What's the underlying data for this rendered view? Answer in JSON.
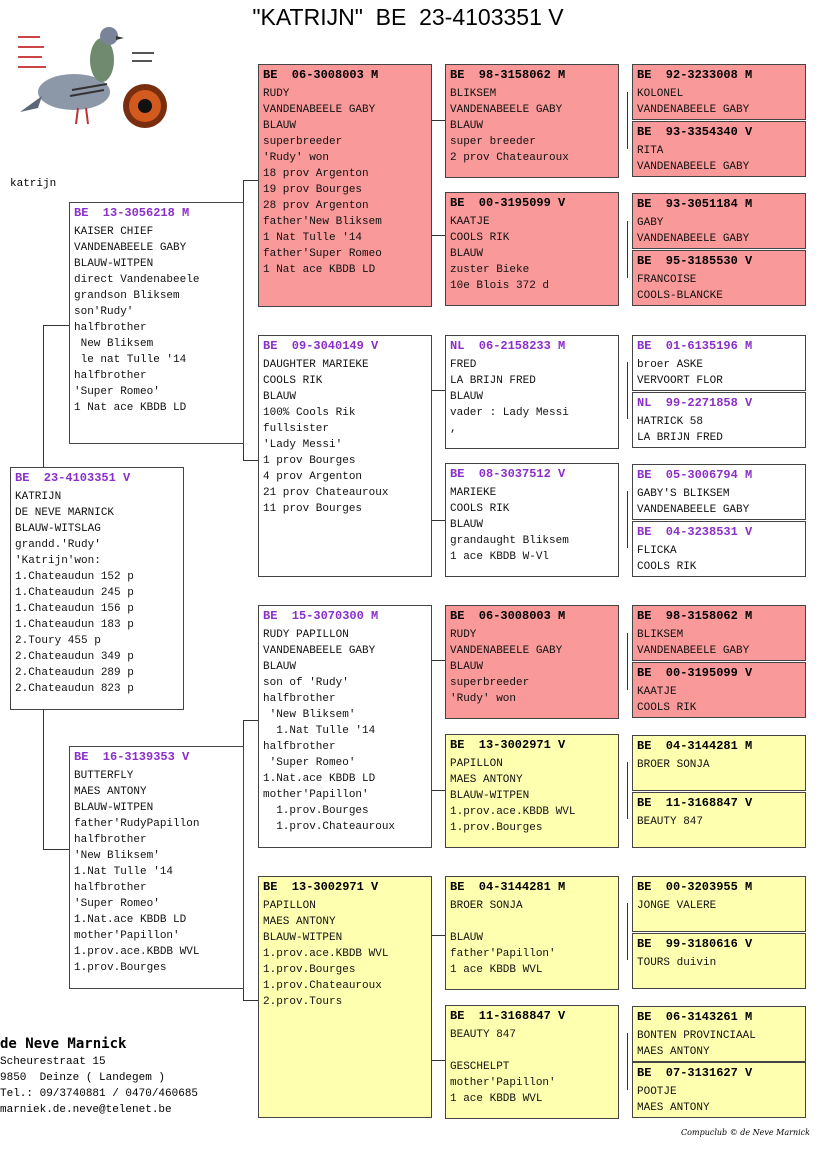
{
  "title": "\"KATRIJN\"  BE  23-4103351 V",
  "label_top_left": "katrijn",
  "colors": {
    "red": "#f99999",
    "yellow": "#ffffb0",
    "purple": "#8b2fc9"
  },
  "logo": {
    "name": "pigeon-and-eye-logo",
    "text": "Compuclub"
  },
  "boxes": {
    "main": {
      "header": "BE  23-4103351 V",
      "lines": [
        "KATRIJN",
        "DE NEVE MARNICK",
        "BLAUW-WITSLAG",
        "grandd.'Rudy'",
        "'Katrijn'won:",
        "1.Chateaudun 152 p",
        "1.Chateaudun 245 p",
        "1.Chateaudun 156 p",
        "1.Chateaudun 183 p",
        "2.Toury 455 p",
        "2.Chateaudun 349 p",
        "2.Chateaudun 289 p",
        "2.Chateaudun 823 p"
      ]
    },
    "sire": {
      "header": "BE  13-3056218 M",
      "lines": [
        "KAISER CHIEF",
        "VANDENABEELE GABY",
        "BLAUW-WITPEN",
        "direct Vandenabeele",
        "grandson Bliksem",
        "son'Rudy'",
        "halfbrother",
        " New Bliksem",
        " le nat Tulle '14",
        "halfbrother",
        "'Super Romeo'",
        "1 Nat ace KBDB LD"
      ]
    },
    "dam": {
      "header": "BE  16-3139353 V",
      "lines": [
        "BUTTERFLY",
        "MAES ANTONY",
        "BLAUW-WITPEN",
        "father'RudyPapillon",
        "halfbrother",
        "'New Bliksem'",
        "1.Nat Tulle '14",
        "halfbrother",
        "'Super Romeo'",
        "1.Nat.ace KBDB LD",
        "mother'Papillon'",
        "1.prov.ace.KBDB WVL",
        "1.prov.Bourges"
      ]
    },
    "g1": {
      "header": "BE  06-3008003 M",
      "lines": [
        "RUDY",
        "VANDENABEELE GABY",
        "BLAUW",
        "superbreeder",
        "'Rudy' won",
        "18 prov Argenton",
        "19 prov Bourges",
        "28 prov Argenton",
        "father'New Bliksem",
        "1 Nat Tulle '14",
        "father'Super Romeo",
        "1 Nat ace KBDB LD"
      ]
    },
    "g2": {
      "header": "BE  09-3040149 V",
      "lines": [
        "DAUGHTER MARIEKE",
        "COOLS RIK",
        "BLAUW",
        "100% Cools Rik",
        "fullsister",
        "'Lady Messi'",
        "1 prov Bourges",
        "4 prov Argenton",
        "21 prov Chateauroux",
        "11 prov Bourges"
      ]
    },
    "g3": {
      "header": "BE  15-3070300 M",
      "lines": [
        "RUDY PAPILLON",
        "VANDENABEELE GABY",
        "BLAUW",
        "son of 'Rudy'",
        "halfbrother",
        " 'New Bliksem'",
        "  1.Nat Tulle '14",
        "halfbrother",
        " 'Super Romeo'",
        "1.Nat.ace KBDB LD",
        "mother'Papillon'",
        "  1.prov.Bourges",
        "  1.prov.Chateauroux"
      ]
    },
    "g4": {
      "header": "BE  13-3002971 V",
      "lines": [
        "PAPILLON",
        "MAES ANTONY",
        "BLAUW-WITPEN",
        "1.prov.ace.KBDB WVL",
        "1.prov.Bourges",
        "1.prov.Chateauroux",
        "2.prov.Tours"
      ]
    },
    "gg1": {
      "header": "BE  98-3158062 M",
      "lines": [
        "BLIKSEM",
        "VANDENABEELE GABY",
        "BLAUW",
        "super breeder",
        "2 prov Chateauroux"
      ]
    },
    "gg2": {
      "header": "BE  00-3195099 V",
      "lines": [
        "KAATJE",
        "COOLS RIK",
        "BLAUW",
        "zuster Bieke",
        "10e Blois 372 d"
      ]
    },
    "gg3": {
      "header": "NL  06-2158233 M",
      "lines": [
        "FRED",
        "LA BRIJN FRED",
        "BLAUW",
        "vader : Lady Messi",
        ","
      ]
    },
    "gg4": {
      "header": "BE  08-3037512 V",
      "lines": [
        "MARIEKE",
        "COOLS RIK",
        "BLAUW",
        "grandaught Bliksem",
        "1 ace KBDB W-Vl"
      ]
    },
    "gg5": {
      "header": "BE  06-3008003 M",
      "lines": [
        "RUDY",
        "VANDENABEELE GABY",
        "BLAUW",
        "superbreeder",
        "'Rudy' won"
      ]
    },
    "gg6": {
      "header": "BE  13-3002971 V",
      "lines": [
        "PAPILLON",
        "MAES ANTONY",
        "BLAUW-WITPEN",
        "1.prov.ace.KBDB WVL",
        "1.prov.Bourges"
      ]
    },
    "gg7": {
      "header": "BE  04-3144281 M",
      "lines": [
        "BROER SONJA",
        "",
        "BLAUW",
        "father'Papillon'",
        "1 ace KBDB WVL"
      ]
    },
    "gg8": {
      "header": "BE  11-3168847 V",
      "lines": [
        "BEAUTY 847",
        "",
        "GESCHELPT",
        "mother'Papillon'",
        "1 ace KBDB WVL"
      ]
    },
    "ggg1": {
      "header": "BE  92-3233008 M",
      "lines": [
        "KOLONEL",
        "VANDENABEELE GABY"
      ]
    },
    "ggg2": {
      "header": "BE  93-3354340 V",
      "lines": [
        "RITA",
        "VANDENABEELE GABY"
      ]
    },
    "ggg3": {
      "header": "BE  93-3051184 M",
      "lines": [
        "GABY",
        "VANDENABEELE GABY"
      ]
    },
    "ggg4": {
      "header": "BE  95-3185530 V",
      "lines": [
        "FRANCOISE",
        "COOLS-BLANCKE"
      ]
    },
    "ggg5": {
      "header": "BE  01-6135196 M",
      "lines": [
        "broer ASKE",
        "VERVOORT FLOR"
      ]
    },
    "ggg6": {
      "header": "NL  99-2271858 V",
      "lines": [
        "HATRICK 58",
        "LA BRIJN FRED"
      ]
    },
    "ggg7": {
      "header": "BE  05-3006794 M",
      "lines": [
        "GABY'S BLIKSEM",
        "VANDENABEELE GABY"
      ]
    },
    "ggg8": {
      "header": "BE  04-3238531 V",
      "lines": [
        "FLICKA",
        "COOLS RIK"
      ]
    },
    "ggg9": {
      "header": "BE  98-3158062 M",
      "lines": [
        "BLIKSEM",
        "VANDENABEELE GABY"
      ]
    },
    "ggg10": {
      "header": "BE  00-3195099 V",
      "lines": [
        "KAATJE",
        "COOLS RIK"
      ]
    },
    "ggg11": {
      "header": "BE  04-3144281 M",
      "lines": [
        "BROER SONJA"
      ]
    },
    "ggg12": {
      "header": "BE  11-3168847 V",
      "lines": [
        "BEAUTY 847"
      ]
    },
    "ggg13": {
      "header": "BE  00-3203955 M",
      "lines": [
        "JONGE VALERE"
      ]
    },
    "ggg14": {
      "header": "BE  99-3180616 V",
      "lines": [
        "TOURS duivin"
      ]
    },
    "ggg15": {
      "header": "BE  06-3143261 M",
      "lines": [
        "BONTEN PROVINCIAAL",
        "MAES ANTONY"
      ]
    },
    "ggg16": {
      "header": "BE  07-3131627 V",
      "lines": [
        "POOTJE",
        "MAES ANTONY"
      ]
    }
  },
  "owner": {
    "name": "de Neve Marnick",
    "street": "Scheurestraat 15",
    "city": "9850  Deinze ( Landegem )",
    "tel": "Tel.: 09/3740881 / 0470/460685",
    "email": "marniek.de.neve@telenet.be"
  },
  "footer": "Compuclub © de Neve Marnick"
}
